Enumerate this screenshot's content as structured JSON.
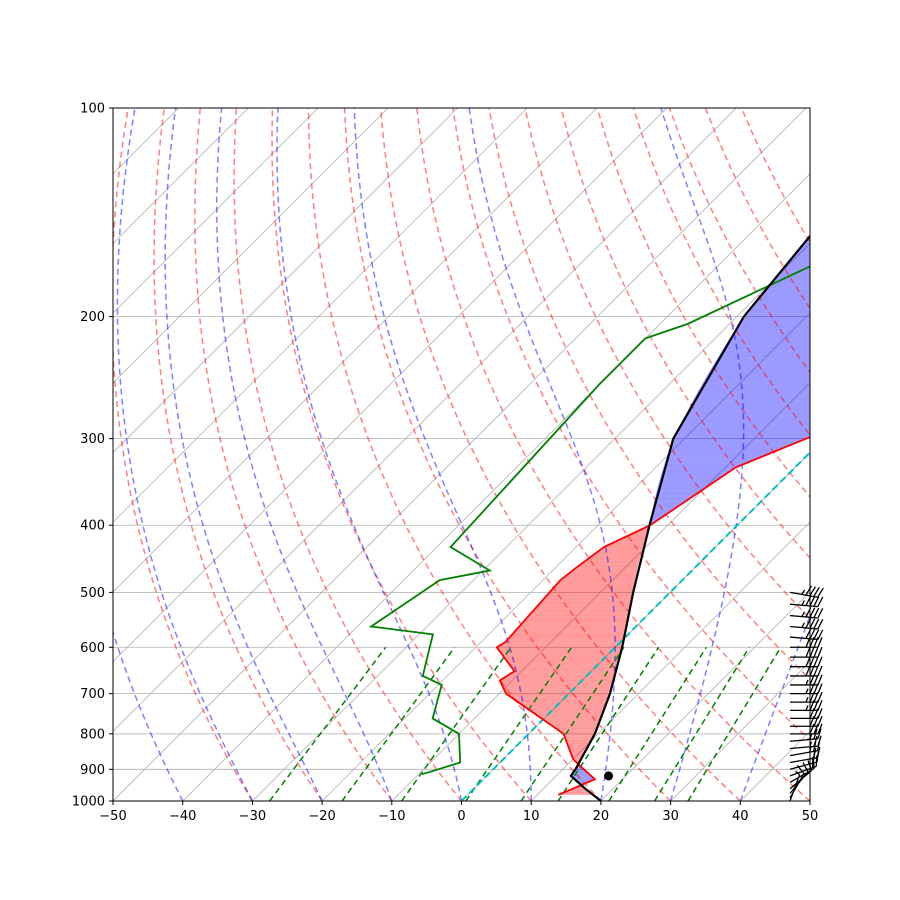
{
  "chart_data": {
    "type": "skew-t",
    "title": "",
    "xlabel": "",
    "ylabel": "",
    "xlim": [
      -50,
      50
    ],
    "ylim": [
      1000,
      100
    ],
    "y_scale": "log",
    "grid": true,
    "x_ticks": [
      "−50",
      "−40",
      "−30",
      "−20",
      "−10",
      "0",
      "10",
      "20",
      "30",
      "40",
      "50"
    ],
    "y_ticks": [
      "100",
      "200",
      "300",
      "400",
      "500",
      "600",
      "700",
      "800",
      "900",
      "1000"
    ],
    "temperature": {
      "color": "#ff0000",
      "points": [
        [
          100,
          17.0
        ],
        [
          125,
          17.5
        ],
        [
          140,
          13.5
        ],
        [
          205,
          8.0
        ],
        [
          215,
          2.0
        ],
        [
          260,
          0.5
        ],
        [
          295,
          -1.5
        ],
        [
          330,
          -8.5
        ],
        [
          400,
          -12.5
        ],
        [
          430,
          -16.0
        ],
        [
          460,
          -17.0
        ],
        [
          480,
          -17.5
        ],
        [
          590,
          -16.5
        ],
        [
          600,
          -17.0
        ],
        [
          650,
          -11.0
        ],
        [
          670,
          -11.8
        ],
        [
          700,
          -9.0
        ],
        [
          800,
          5.0
        ],
        [
          870,
          10.0
        ],
        [
          900,
          13.0
        ],
        [
          930,
          16.0
        ],
        [
          980,
          13.0
        ]
      ]
    },
    "dewpoint": {
      "color": "#008000",
      "points": [
        [
          100,
          -7.3
        ],
        [
          125,
          -10.3
        ],
        [
          140,
          -17.5
        ],
        [
          205,
          -36.0
        ],
        [
          215,
          -40.0
        ],
        [
          250,
          -40.0
        ],
        [
          430,
          -38.0
        ],
        [
          465,
          -29.0
        ],
        [
          480,
          -34.8
        ],
        [
          560,
          -38.0
        ],
        [
          575,
          -28.0
        ],
        [
          650,
          -24.0
        ],
        [
          660,
          -23.5
        ],
        [
          680,
          -19.5
        ],
        [
          760,
          -16.0
        ],
        [
          800,
          -10.0
        ],
        [
          880,
          -5.7
        ],
        [
          915,
          -9.5
        ]
      ]
    },
    "parcel": {
      "color": "#000000",
      "lcl": [
        920,
        17.5
      ],
      "points": [
        [
          100,
          -30.8
        ],
        [
          150,
          -31.2
        ],
        [
          200,
          -29.0
        ],
        [
          300,
          -21.6
        ],
        [
          400,
          -12.6
        ],
        [
          500,
          -5.3
        ],
        [
          600,
          1.0
        ],
        [
          700,
          5.9
        ],
        [
          800,
          9.5
        ],
        [
          900,
          11.8
        ],
        [
          920,
          12.1
        ],
        [
          960,
          16.0
        ],
        [
          1000,
          20.0
        ]
      ]
    },
    "cape_color": "#ff0000",
    "cin_color": "#0000ff",
    "dry_adiabats_c": [
      -30,
      -20,
      -10,
      0,
      10,
      20,
      30,
      40,
      50,
      60,
      70,
      80,
      90,
      100,
      110,
      120,
      130,
      140
    ],
    "moist_adiabats_c": [
      -40,
      -30,
      -20,
      -10,
      0,
      10,
      20,
      30,
      40,
      50
    ],
    "mixing_ratios_gkg": [
      0.4,
      1,
      2,
      4,
      7,
      10,
      16,
      24,
      32
    ],
    "isotherm_zero_color": "#00bfbf",
    "adiabat_color": "#ff0000",
    "moist_color": "#0000ff",
    "mixing_color": "#008000",
    "wind_barbs": [
      {
        "p": 1000,
        "spd": 5,
        "dir": 200
      },
      {
        "p": 990,
        "spd": 10,
        "dir": 210
      },
      {
        "p": 975,
        "spd": 10,
        "dir": 220
      },
      {
        "p": 960,
        "spd": 15,
        "dir": 230
      },
      {
        "p": 940,
        "spd": 15,
        "dir": 240
      },
      {
        "p": 920,
        "spd": 20,
        "dir": 250
      },
      {
        "p": 900,
        "spd": 20,
        "dir": 255
      },
      {
        "p": 880,
        "spd": 20,
        "dir": 260
      },
      {
        "p": 860,
        "spd": 25,
        "dir": 260
      },
      {
        "p": 840,
        "spd": 25,
        "dir": 265
      },
      {
        "p": 820,
        "spd": 25,
        "dir": 265
      },
      {
        "p": 800,
        "spd": 30,
        "dir": 270
      },
      {
        "p": 780,
        "spd": 30,
        "dir": 270
      },
      {
        "p": 760,
        "spd": 30,
        "dir": 270
      },
      {
        "p": 740,
        "spd": 35,
        "dir": 270
      },
      {
        "p": 720,
        "spd": 35,
        "dir": 270
      },
      {
        "p": 700,
        "spd": 35,
        "dir": 270
      },
      {
        "p": 680,
        "spd": 35,
        "dir": 270
      },
      {
        "p": 660,
        "spd": 40,
        "dir": 270
      },
      {
        "p": 640,
        "spd": 40,
        "dir": 270
      },
      {
        "p": 620,
        "spd": 40,
        "dir": 270
      },
      {
        "p": 600,
        "spd": 40,
        "dir": 270
      },
      {
        "p": 580,
        "spd": 40,
        "dir": 275
      },
      {
        "p": 560,
        "spd": 45,
        "dir": 275
      },
      {
        "p": 540,
        "spd": 45,
        "dir": 275
      },
      {
        "p": 520,
        "spd": 45,
        "dir": 275
      },
      {
        "p": 500,
        "spd": 45,
        "dir": 280
      }
    ]
  }
}
